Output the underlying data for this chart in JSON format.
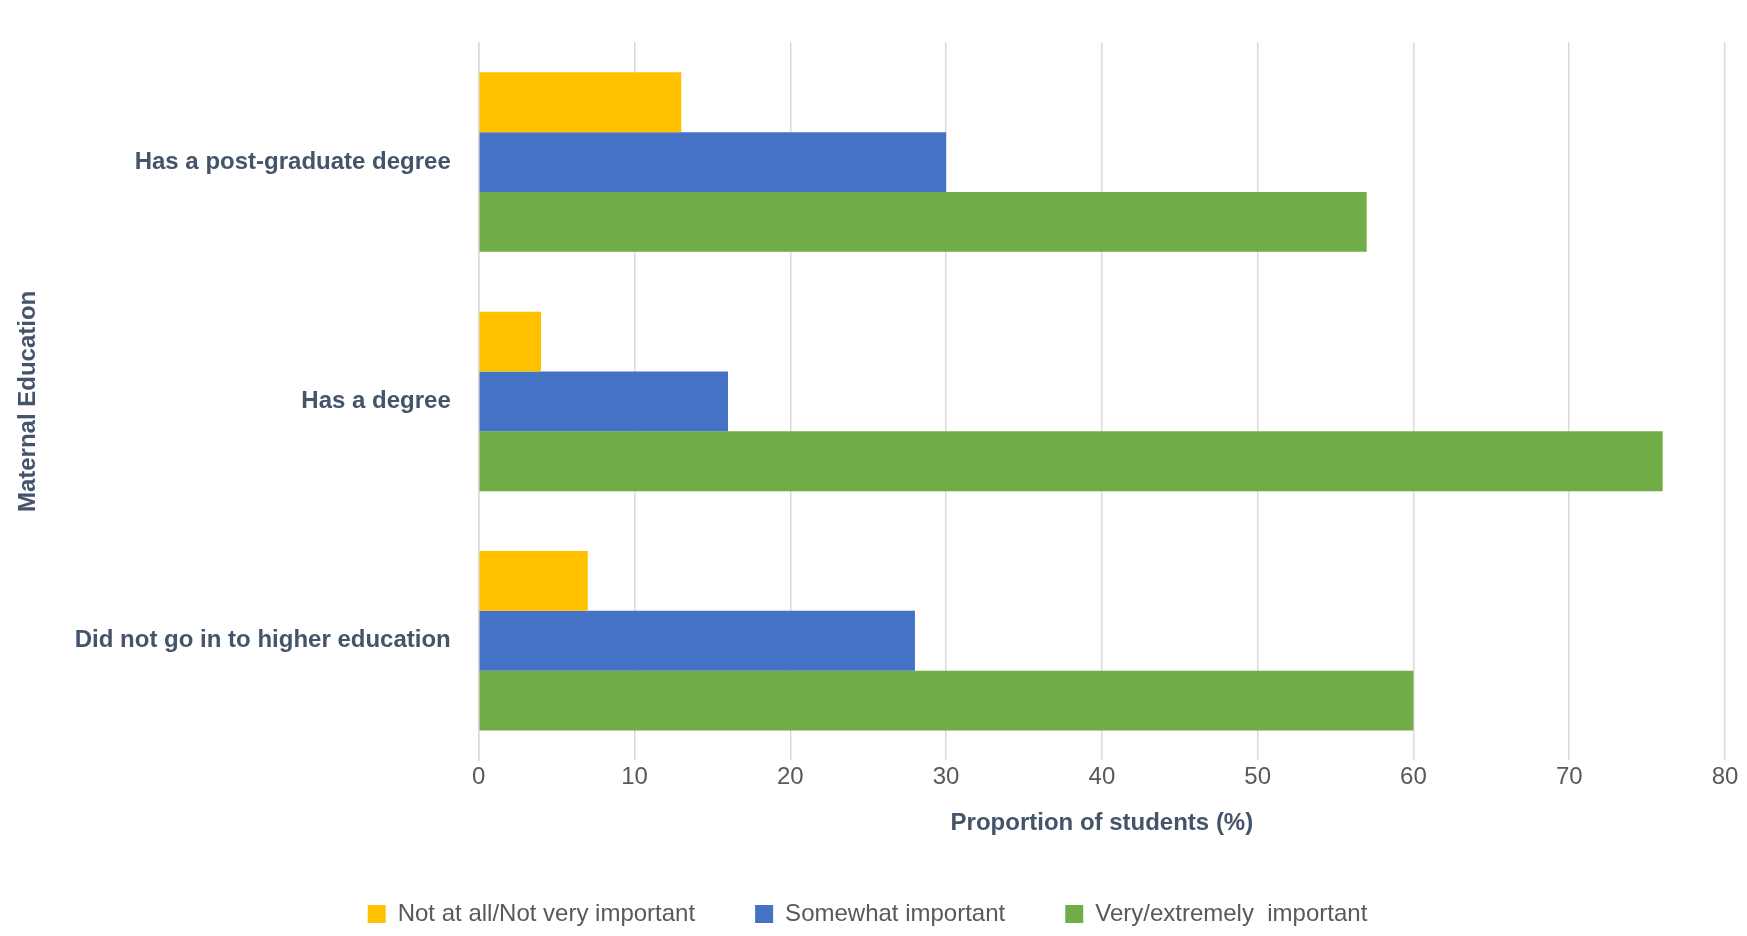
{
  "chart_data": {
    "type": "bar",
    "orientation": "horizontal",
    "xlabel": "Proportion of students (%)",
    "ylabel": "Maternal Education",
    "categories": [
      "Has a post-graduate degree",
      "Has a degree",
      "Did not go in to higher education"
    ],
    "series": [
      {
        "name": "Not at all/Not very important",
        "color": "#ffc000",
        "values": [
          13,
          4,
          7
        ]
      },
      {
        "name": "Somewhat important",
        "color": "#4472c4",
        "values": [
          30,
          16,
          28
        ]
      },
      {
        "name": "Very/extremely  important",
        "color": "#70ad47",
        "values": [
          57,
          76,
          60
        ]
      }
    ],
    "xlim": [
      0,
      80
    ],
    "xticks": [
      0,
      10,
      20,
      30,
      40,
      50,
      60,
      70,
      80
    ],
    "grid": "x",
    "legend": "bottom"
  }
}
